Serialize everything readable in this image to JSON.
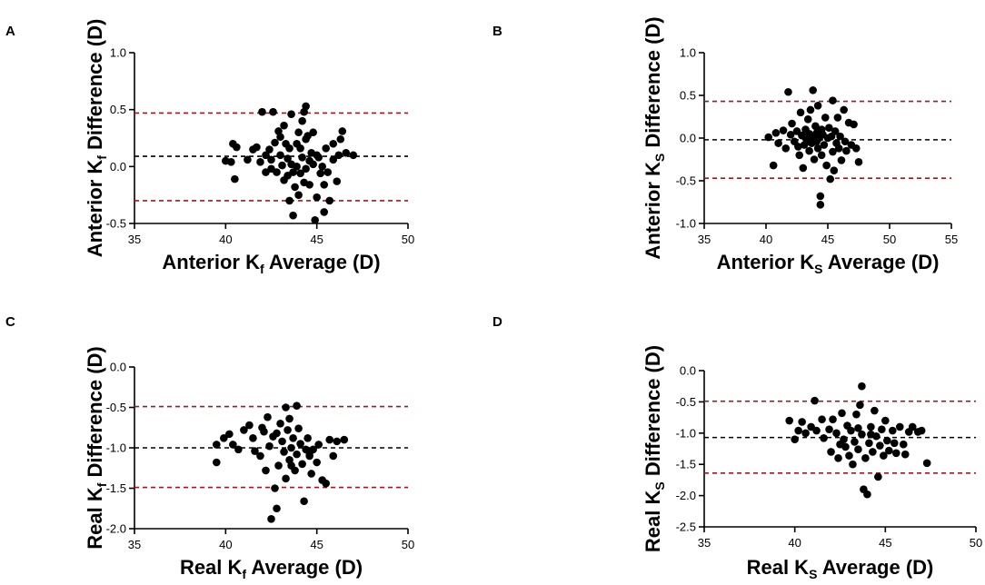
{
  "colors": {
    "mean": "#000000",
    "limits": "#a0181c",
    "points": "#000000"
  },
  "chart_data": [
    {
      "panel": "A",
      "type": "scatter",
      "x_title": {
        "main": "Anterior K",
        "sub": "f",
        "rest": " Average (D)"
      },
      "y_title": {
        "main": "Anterior K",
        "sub": "f",
        "rest": " Difference (D)"
      },
      "xlim": [
        35,
        50
      ],
      "ylim": [
        -0.5,
        1.0
      ],
      "xticks": [
        35,
        40,
        45,
        50
      ],
      "xtick_labels": [
        "35",
        "40",
        "45",
        "50"
      ],
      "yticks": [
        -0.5,
        0.0,
        0.5,
        1.0
      ],
      "ytick_labels": [
        "-0.5",
        "0.0",
        "0.5",
        "1.0"
      ],
      "mean_line": 0.09,
      "limit_lines": [
        0.47,
        -0.3
      ],
      "points": [
        [
          40.0,
          0.05
        ],
        [
          40.3,
          0.04
        ],
        [
          40.4,
          0.2
        ],
        [
          40.6,
          0.17
        ],
        [
          40.5,
          -0.11
        ],
        [
          41.2,
          0.06
        ],
        [
          41.5,
          0.15
        ],
        [
          41.7,
          0.17
        ],
        [
          41.9,
          0.04
        ],
        [
          42.0,
          0.48
        ],
        [
          42.2,
          0.1
        ],
        [
          42.2,
          -0.05
        ],
        [
          42.4,
          0.15
        ],
        [
          42.5,
          -0.02
        ],
        [
          42.6,
          0.48
        ],
        [
          42.5,
          0.06
        ],
        [
          42.7,
          0.21
        ],
        [
          42.8,
          -0.05
        ],
        [
          43.0,
          0.1
        ],
        [
          43.0,
          0.26
        ],
        [
          43.1,
          0.01
        ],
        [
          43.2,
          -0.12
        ],
        [
          43.2,
          0.36
        ],
        [
          43.3,
          0.2
        ],
        [
          43.4,
          0.07
        ],
        [
          43.5,
          -0.3
        ],
        [
          43.5,
          0.16
        ],
        [
          43.6,
          0.02
        ],
        [
          43.6,
          0.46
        ],
        [
          43.7,
          -0.05
        ],
        [
          43.7,
          -0.43
        ],
        [
          43.8,
          -0.18
        ],
        [
          43.9,
          0.2
        ],
        [
          43.9,
          0.0
        ],
        [
          44.0,
          -0.25
        ],
        [
          44.0,
          0.3
        ],
        [
          44.1,
          0.16
        ],
        [
          44.1,
          -0.06
        ],
        [
          44.2,
          0.4
        ],
        [
          44.2,
          0.08
        ],
        [
          44.3,
          0.48
        ],
        [
          44.3,
          -0.14
        ],
        [
          44.4,
          0.53
        ],
        [
          44.4,
          0.24
        ],
        [
          44.4,
          -0.02
        ],
        [
          44.5,
          0.27
        ],
        [
          44.6,
          0.05
        ],
        [
          44.6,
          -0.16
        ],
        [
          44.8,
          0.3
        ],
        [
          44.8,
          0.02
        ],
        [
          44.9,
          -0.47
        ],
        [
          45.0,
          0.1
        ],
        [
          45.0,
          -0.27
        ],
        [
          45.1,
          0.08
        ],
        [
          45.2,
          -0.06
        ],
        [
          45.3,
          0.0
        ],
        [
          45.4,
          -0.4
        ],
        [
          45.4,
          -0.16
        ],
        [
          45.5,
          0.16
        ],
        [
          45.6,
          -0.05
        ],
        [
          45.7,
          -0.3
        ],
        [
          45.9,
          0.06
        ],
        [
          46.1,
          -0.13
        ],
        [
          46.2,
          0.1
        ],
        [
          46.3,
          0.24
        ],
        [
          46.4,
          0.31
        ],
        [
          46.6,
          0.12
        ],
        [
          47.0,
          0.1
        ],
        [
          45.9,
          0.2
        ],
        [
          44.7,
          0.12
        ],
        [
          43.4,
          -0.08
        ],
        [
          42.9,
          0.31
        ]
      ]
    },
    {
      "panel": "B",
      "type": "scatter",
      "x_title": {
        "main": "Anterior K",
        "sub": "S",
        "rest": " Average (D)"
      },
      "y_title": {
        "main": "Anterior K",
        "sub": "S",
        "rest": " Difference (D)"
      },
      "xlim": [
        35,
        55
      ],
      "ylim": [
        -1.0,
        1.0
      ],
      "xticks": [
        35,
        40,
        45,
        50,
        55
      ],
      "xtick_labels": [
        "35",
        "40",
        "45",
        "50",
        "55"
      ],
      "yticks": [
        -1.0,
        -0.5,
        0.0,
        0.5,
        1.0
      ],
      "ytick_labels": [
        "-1.0",
        "-0.5",
        "0.0",
        "0.5",
        "1.0"
      ],
      "mean_line": -0.02,
      "limit_lines": [
        0.43,
        -0.47
      ],
      "points": [
        [
          40.2,
          0.01
        ],
        [
          40.6,
          -0.32
        ],
        [
          40.8,
          0.06
        ],
        [
          41.0,
          -0.06
        ],
        [
          41.4,
          0.09
        ],
        [
          41.6,
          -0.12
        ],
        [
          41.8,
          0.54
        ],
        [
          42.0,
          0.04
        ],
        [
          42.1,
          0.17
        ],
        [
          42.3,
          -0.04
        ],
        [
          42.5,
          0.08
        ],
        [
          42.7,
          -0.2
        ],
        [
          42.8,
          0.3
        ],
        [
          42.9,
          0.03
        ],
        [
          43.0,
          -0.35
        ],
        [
          43.1,
          -0.08
        ],
        [
          43.2,
          0.1
        ],
        [
          43.3,
          -0.02
        ],
        [
          43.4,
          0.22
        ],
        [
          43.5,
          -0.15
        ],
        [
          43.5,
          0.05
        ],
        [
          43.6,
          0.33
        ],
        [
          43.7,
          -0.06
        ],
        [
          43.8,
          0.56
        ],
        [
          43.8,
          0.02
        ],
        [
          43.9,
          -0.25
        ],
        [
          44.0,
          0.14
        ],
        [
          44.1,
          -0.04
        ],
        [
          44.1,
          0.06
        ],
        [
          44.2,
          -0.12
        ],
        [
          44.2,
          0.38
        ],
        [
          44.3,
          0.0
        ],
        [
          44.4,
          -0.68
        ],
        [
          44.4,
          -0.78
        ],
        [
          44.5,
          0.1
        ],
        [
          44.5,
          -0.2
        ],
        [
          44.6,
          0.04
        ],
        [
          44.7,
          -0.08
        ],
        [
          44.8,
          0.24
        ],
        [
          44.9,
          -0.32
        ],
        [
          45.0,
          0.0
        ],
        [
          45.1,
          0.12
        ],
        [
          45.2,
          -0.48
        ],
        [
          45.3,
          0.02
        ],
        [
          45.4,
          0.44
        ],
        [
          45.4,
          -0.16
        ],
        [
          45.5,
          -0.38
        ],
        [
          45.6,
          0.08
        ],
        [
          45.7,
          -0.06
        ],
        [
          45.8,
          0.24
        ],
        [
          45.9,
          -0.12
        ],
        [
          46.0,
          0.02
        ],
        [
          46.1,
          -0.26
        ],
        [
          46.3,
          0.33
        ],
        [
          46.4,
          -0.04
        ],
        [
          46.5,
          -0.15
        ],
        [
          46.7,
          0.18
        ],
        [
          46.9,
          -0.08
        ],
        [
          47.1,
          0.16
        ],
        [
          47.3,
          -0.12
        ],
        [
          47.5,
          -0.28
        ],
        [
          44.3,
          0.06
        ],
        [
          43.6,
          0.02
        ],
        [
          42.6,
          -0.1
        ]
      ]
    },
    {
      "panel": "C",
      "type": "scatter",
      "x_title": {
        "main": "Real K",
        "sub": "f",
        "rest": " Average (D)"
      },
      "y_title": {
        "main": "Real K",
        "sub": "f",
        "rest": " Difference (D)"
      },
      "xlim": [
        35,
        50
      ],
      "ylim": [
        -2.0,
        0.0
      ],
      "xticks": [
        35,
        40,
        45,
        50
      ],
      "xtick_labels": [
        "35",
        "40",
        "45",
        "50"
      ],
      "yticks": [
        -2.0,
        -1.5,
        -1.0,
        -0.5,
        0.0
      ],
      "ytick_labels": [
        "-2.0",
        "-1.5",
        "-1.0",
        "-0.5",
        "0.0"
      ],
      "mean_line": -1.0,
      "limit_lines": [
        -0.49,
        -1.49
      ],
      "points": [
        [
          39.5,
          -0.96
        ],
        [
          39.5,
          -1.18
        ],
        [
          39.9,
          -0.88
        ],
        [
          40.2,
          -0.83
        ],
        [
          40.4,
          -0.96
        ],
        [
          40.7,
          -1.02
        ],
        [
          41.0,
          -0.78
        ],
        [
          41.3,
          -0.72
        ],
        [
          41.5,
          -0.88
        ],
        [
          41.6,
          -1.04
        ],
        [
          41.9,
          -1.1
        ],
        [
          42.0,
          -0.75
        ],
        [
          42.1,
          -0.8
        ],
        [
          42.2,
          -1.28
        ],
        [
          42.3,
          -0.62
        ],
        [
          42.4,
          -0.98
        ],
        [
          42.5,
          -1.88
        ],
        [
          42.6,
          -0.86
        ],
        [
          42.7,
          -1.5
        ],
        [
          42.8,
          -1.75
        ],
        [
          42.9,
          -1.22
        ],
        [
          43.0,
          -0.7
        ],
        [
          43.1,
          -0.92
        ],
        [
          43.2,
          -1.05
        ],
        [
          43.3,
          -0.5
        ],
        [
          43.3,
          -1.38
        ],
        [
          43.4,
          -0.78
        ],
        [
          43.5,
          -0.64
        ],
        [
          43.5,
          -1.15
        ],
        [
          43.6,
          -1.0
        ],
        [
          43.7,
          -0.88
        ],
        [
          43.8,
          -1.28
        ],
        [
          43.9,
          -0.48
        ],
        [
          43.9,
          -1.08
        ],
        [
          44.0,
          -0.76
        ],
        [
          44.1,
          -0.95
        ],
        [
          44.2,
          -1.2
        ],
        [
          44.3,
          -1.66
        ],
        [
          44.4,
          -1.02
        ],
        [
          44.5,
          -0.88
        ],
        [
          44.6,
          -1.1
        ],
        [
          44.7,
          -1.32
        ],
        [
          44.8,
          -1.02
        ],
        [
          45.0,
          -1.18
        ],
        [
          45.1,
          -0.96
        ],
        [
          45.3,
          -1.4
        ],
        [
          45.5,
          -1.44
        ],
        [
          45.7,
          -0.9
        ],
        [
          45.9,
          -1.1
        ],
        [
          46.1,
          -0.92
        ],
        [
          46.5,
          -0.9
        ],
        [
          42.8,
          -0.82
        ],
        [
          43.6,
          -1.22
        ],
        [
          44.6,
          -1.06
        ]
      ]
    },
    {
      "panel": "D",
      "type": "scatter",
      "x_title": {
        "main": "Real K",
        "sub": "S",
        "rest": " Average (D)"
      },
      "y_title": {
        "main": "Real K",
        "sub": "S",
        "rest": " Difference (D)"
      },
      "xlim": [
        35,
        50
      ],
      "ylim": [
        -2.5,
        0.0
      ],
      "xticks": [
        35,
        40,
        45,
        50
      ],
      "xtick_labels": [
        "35",
        "40",
        "45",
        "50"
      ],
      "yticks": [
        -2.5,
        -2.0,
        -1.5,
        -1.0,
        -0.5,
        0.0
      ],
      "ytick_labels": [
        "-2.5",
        "-2.0",
        "-1.5",
        "-1.0",
        "-0.5",
        "0.0"
      ],
      "mean_line": -1.07,
      "limit_lines": [
        -0.49,
        -1.64
      ],
      "points": [
        [
          39.7,
          -0.8
        ],
        [
          40.0,
          -1.1
        ],
        [
          40.2,
          -0.96
        ],
        [
          40.4,
          -0.82
        ],
        [
          40.6,
          -1.0
        ],
        [
          40.9,
          -0.9
        ],
        [
          41.1,
          -0.48
        ],
        [
          41.2,
          -0.96
        ],
        [
          41.5,
          -0.78
        ],
        [
          41.6,
          -1.08
        ],
        [
          41.9,
          -0.94
        ],
        [
          42.0,
          -1.3
        ],
        [
          42.1,
          -0.78
        ],
        [
          42.3,
          -1.0
        ],
        [
          42.4,
          -1.4
        ],
        [
          42.6,
          -0.68
        ],
        [
          42.7,
          -1.1
        ],
        [
          42.8,
          -1.22
        ],
        [
          42.9,
          -0.88
        ],
        [
          43.0,
          -1.36
        ],
        [
          43.1,
          -0.96
        ],
        [
          43.2,
          -1.5
        ],
        [
          43.3,
          -1.14
        ],
        [
          43.4,
          -0.7
        ],
        [
          43.5,
          -1.26
        ],
        [
          43.6,
          -0.55
        ],
        [
          43.7,
          -0.25
        ],
        [
          43.7,
          -1.02
        ],
        [
          43.8,
          -1.9
        ],
        [
          43.9,
          -1.4
        ],
        [
          44.0,
          -1.98
        ],
        [
          44.1,
          -1.16
        ],
        [
          44.2,
          -0.9
        ],
        [
          44.3,
          -1.3
        ],
        [
          44.4,
          -0.64
        ],
        [
          44.5,
          -1.05
        ],
        [
          44.6,
          -1.7
        ],
        [
          44.7,
          -1.2
        ],
        [
          44.8,
          -0.94
        ],
        [
          44.9,
          -1.36
        ],
        [
          45.0,
          -0.8
        ],
        [
          45.1,
          -1.12
        ],
        [
          45.2,
          -1.28
        ],
        [
          45.4,
          -0.96
        ],
        [
          45.5,
          -1.16
        ],
        [
          45.6,
          -1.32
        ],
        [
          45.8,
          -0.9
        ],
        [
          46.0,
          -1.18
        ],
        [
          46.1,
          -1.34
        ],
        [
          46.3,
          -0.98
        ],
        [
          46.5,
          -0.9
        ],
        [
          46.8,
          -0.98
        ],
        [
          47.0,
          -0.96
        ],
        [
          47.3,
          -1.48
        ],
        [
          43.5,
          -0.92
        ],
        [
          44.2,
          -1.02
        ],
        [
          42.5,
          -1.18
        ]
      ]
    }
  ]
}
